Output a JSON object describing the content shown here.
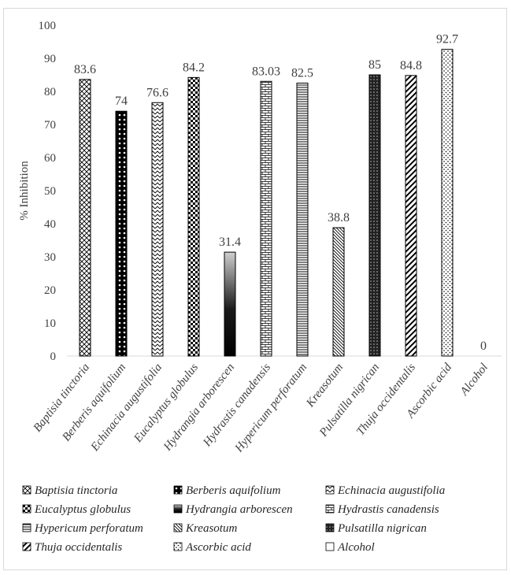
{
  "chart_data": {
    "type": "bar",
    "title": "",
    "xlabel": "",
    "ylabel": "% Inhibition",
    "ylim": [
      0,
      100
    ],
    "yticks": [
      "0",
      "10",
      "20",
      "30",
      "40",
      "50",
      "60",
      "70",
      "80",
      "90",
      "100"
    ],
    "grid": false,
    "legend_position": "bottom",
    "categories": [
      "Baptisia tinctoria",
      "Berberis aquifolium",
      "Echinacia augustifolia",
      "Eucalyptus globulus",
      "Hydrangia arborescen",
      "Hydrastis canadensis",
      "Hypericum perforatum",
      "Kreasotum",
      "Pulsatilla nigrican",
      "Thuja occidentalis",
      "Ascorbic acid",
      "Alcohol"
    ],
    "values": [
      83.6,
      74,
      76.6,
      84.2,
      31.4,
      83.03,
      82.5,
      38.8,
      85,
      84.8,
      92.7,
      0
    ],
    "value_labels": [
      "83.6",
      "74",
      "76.6",
      "84.2",
      "31.4",
      "83.03",
      "82.5",
      "38.8",
      "85",
      "84.8",
      "92.7",
      "0"
    ],
    "patterns": [
      "wave-crosshatch",
      "dark-checker",
      "zigzag",
      "checker",
      "gradient-black",
      "brick",
      "horizontal-lines",
      "diagonal-lines",
      "dark-dots",
      "wide-diagonal",
      "dots",
      "none"
    ]
  }
}
